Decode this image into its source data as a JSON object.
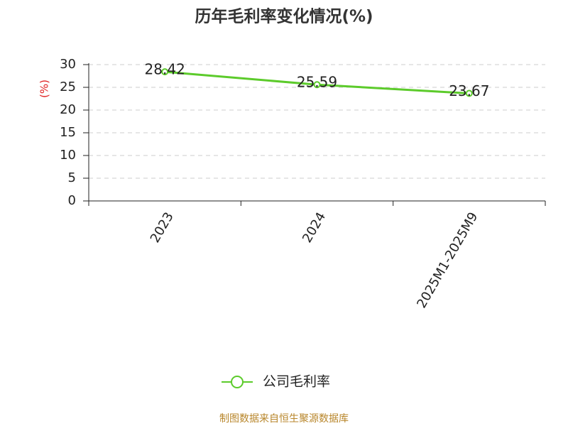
{
  "chart_data": {
    "type": "line",
    "title": "历年毛利率变化情况(%)",
    "ylabel": "(%)",
    "categories": [
      "2023",
      "2024",
      "2025M1-2025M9"
    ],
    "series": [
      {
        "name": "公司毛利率",
        "color": "#5ccb2b",
        "values": [
          28.42,
          25.59,
          23.67
        ]
      }
    ],
    "ylim": [
      0,
      30
    ],
    "yticks": [
      0,
      5,
      10,
      15,
      20,
      25,
      30
    ],
    "grid": true,
    "source": "制图数据来自恒生聚源数据库"
  }
}
